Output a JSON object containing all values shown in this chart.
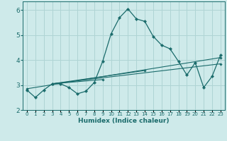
{
  "xlabel": "Humidex (Indice chaleur)",
  "ylabel": "",
  "background_color": "#ceeaea",
  "grid_color": "#afd4d4",
  "line_color": "#1a6b6b",
  "xlim": [
    -0.5,
    23.5
  ],
  "ylim": [
    2.0,
    6.35
  ],
  "yticks": [
    2,
    3,
    4,
    5,
    6
  ],
  "xtick_labels": [
    "0",
    "1",
    "2",
    "3",
    "4",
    "5",
    "6",
    "7",
    "8",
    "9",
    "10",
    "11",
    "12",
    "13",
    "14",
    "15",
    "16",
    "17",
    "18",
    "19",
    "20",
    "21",
    "22",
    "23"
  ],
  "main_x": [
    0,
    1,
    2,
    3,
    4,
    5,
    6,
    7,
    8,
    9,
    10,
    11,
    12,
    13,
    14,
    15,
    16,
    17,
    18,
    19,
    20,
    21,
    22,
    23
  ],
  "main_y": [
    2.8,
    2.5,
    2.8,
    3.05,
    3.05,
    2.9,
    2.65,
    2.75,
    3.1,
    3.95,
    5.05,
    5.7,
    6.05,
    5.65,
    5.55,
    4.95,
    4.6,
    4.45,
    3.95,
    3.4,
    3.9,
    2.9,
    3.35,
    4.2
  ],
  "extra_lines": [
    {
      "x": [
        0,
        23
      ],
      "y": [
        2.85,
        4.1
      ]
    },
    {
      "x": [
        3,
        23
      ],
      "y": [
        3.05,
        3.85
      ]
    },
    {
      "x": [
        3,
        14
      ],
      "y": [
        3.05,
        3.58
      ]
    },
    {
      "x": [
        3,
        9
      ],
      "y": [
        3.05,
        3.22
      ]
    }
  ]
}
